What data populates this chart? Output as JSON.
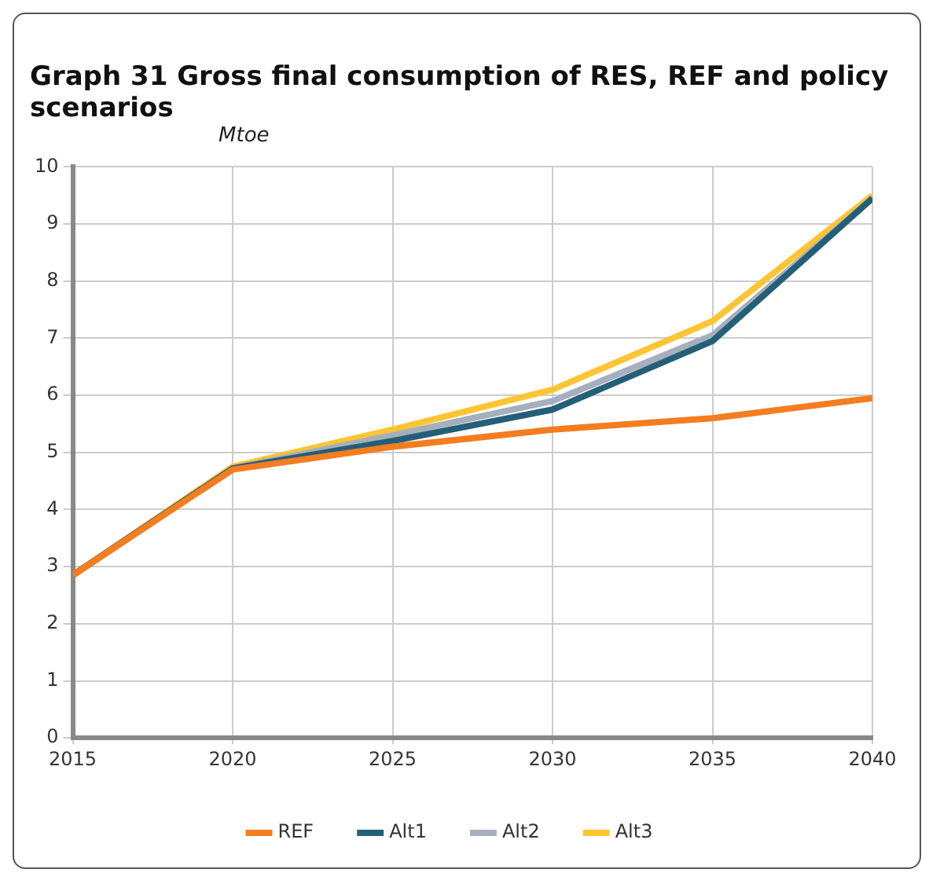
{
  "chart_data": {
    "type": "line",
    "title": "Graph 31 Gross final consumption of RES, REF and policy scenarios",
    "ylabel": "Mtoe",
    "x": [
      2015,
      2020,
      2025,
      2030,
      2035,
      2040
    ],
    "series": [
      {
        "name": "REF",
        "color": "#f47d20",
        "values": [
          2.85,
          4.7,
          5.1,
          5.4,
          5.6,
          5.95
        ]
      },
      {
        "name": "Alt1",
        "color": "#245f78",
        "values": [
          2.85,
          4.72,
          5.2,
          5.75,
          6.95,
          9.45
        ]
      },
      {
        "name": "Alt2",
        "color": "#a5afbd",
        "values": [
          2.85,
          4.72,
          5.3,
          5.9,
          7.05,
          9.45
        ]
      },
      {
        "name": "Alt3",
        "color": "#fdc533",
        "values": [
          2.85,
          4.75,
          5.4,
          6.1,
          7.3,
          9.5
        ]
      }
    ],
    "xlim": [
      2015,
      2040
    ],
    "xticks": [
      2015,
      2020,
      2025,
      2030,
      2035,
      2040
    ],
    "ylim": [
      0,
      10
    ],
    "yticks": [
      0,
      1,
      2,
      3,
      4,
      5,
      6,
      7,
      8,
      9,
      10
    ],
    "grid": true,
    "legend": "bottom",
    "marker": "none",
    "line_style": "solid"
  }
}
